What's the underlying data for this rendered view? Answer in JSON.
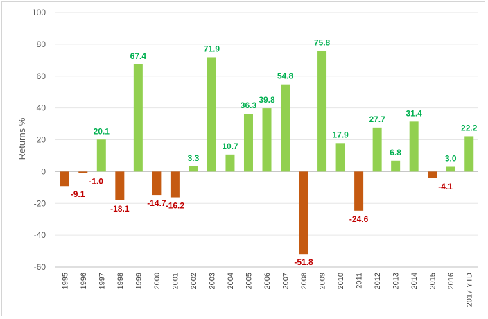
{
  "chart_data": {
    "type": "bar",
    "ylabel": "Returns %",
    "xlabel": "",
    "title": "",
    "ylim": [
      -60,
      100
    ],
    "yticks": [
      -60,
      -40,
      -20,
      0,
      20,
      40,
      60,
      80,
      100
    ],
    "grid": true,
    "categories": [
      "1995",
      "1996",
      "1997",
      "1998",
      "1999",
      "2000",
      "2001",
      "2002",
      "2003",
      "2004",
      "2005",
      "2006",
      "2007",
      "2008",
      "2009",
      "2010",
      "2011",
      "2012",
      "2013",
      "2014",
      "2015",
      "2016",
      "2017 YTD"
    ],
    "values": [
      -9.1,
      -1.0,
      20.1,
      -18.1,
      67.4,
      -14.7,
      -16.2,
      3.3,
      71.9,
      10.7,
      36.3,
      39.8,
      54.8,
      -51.8,
      75.8,
      17.9,
      -24.6,
      27.7,
      6.8,
      31.4,
      -4.1,
      3.0,
      22.2
    ],
    "data_labels": [
      "-9.1",
      "-1.0",
      "20.1",
      "-18.1",
      "67.4",
      "-14.7",
      "-16.2",
      "3.3",
      "71.9",
      "10.7",
      "36.3",
      "39.8",
      "54.8",
      "-51.8",
      "75.8",
      "17.9",
      "-24.6",
      "27.7",
      "6.8",
      "31.4",
      "-4.1",
      "3.0",
      "22.2"
    ],
    "colors": {
      "positive_bar": "#92d050",
      "negative_bar": "#c55a11",
      "positive_label": "#00b050",
      "negative_label": "#c00000"
    }
  }
}
